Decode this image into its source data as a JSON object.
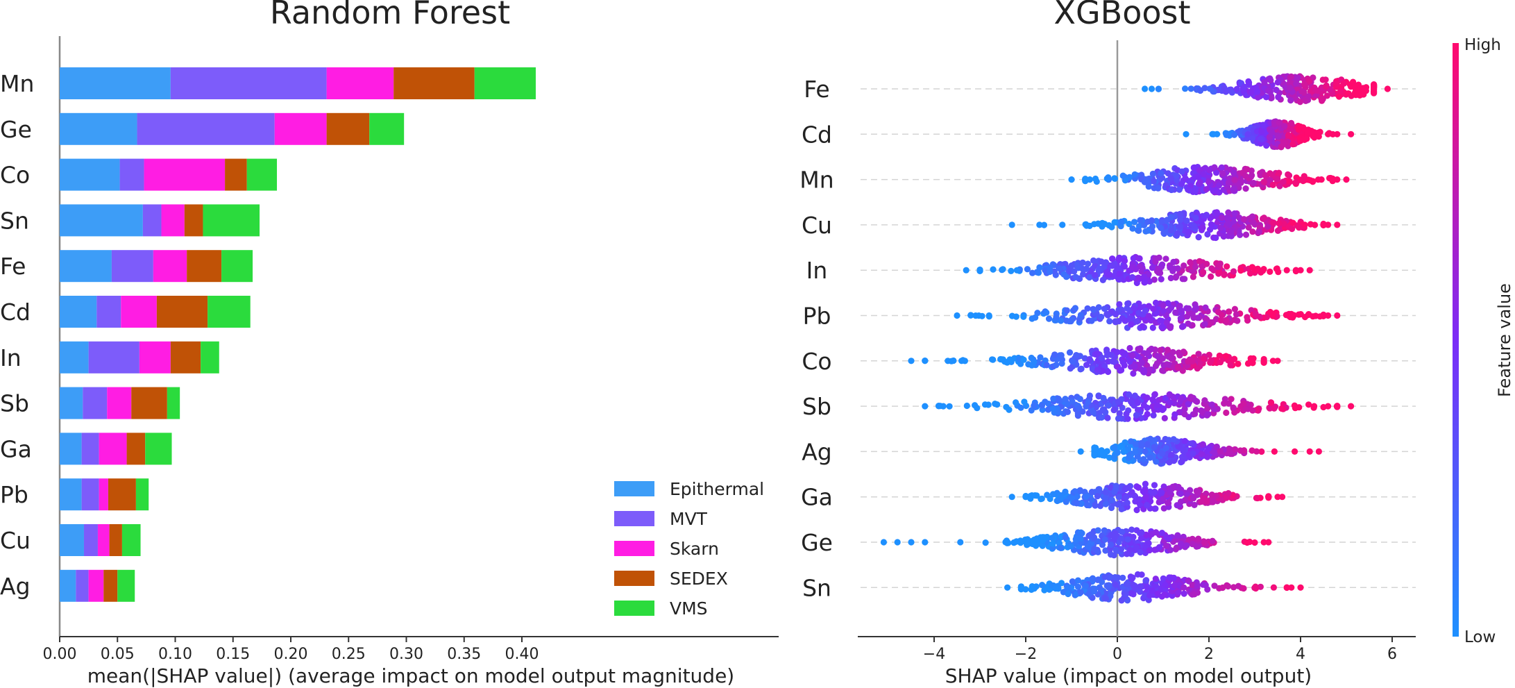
{
  "chart_data": [
    {
      "type": "bar",
      "stacked": true,
      "orientation": "horizontal",
      "title": "Random Forest",
      "xlabel": "mean(|SHAP value|) (average impact on model output magnitude)",
      "ylabel": "",
      "xlim": [
        0,
        0.43
      ],
      "xticks": [
        "0.00",
        "0.05",
        "0.10",
        "0.15",
        "0.20",
        "0.25",
        "0.30",
        "0.35",
        "0.40"
      ],
      "categories": [
        "Mn",
        "Ge",
        "Co",
        "Sn",
        "Fe",
        "Cd",
        "In",
        "Sb",
        "Ga",
        "Pb",
        "Cu",
        "Ag"
      ],
      "legend_position": "lower-right",
      "series": [
        {
          "name": "Epithermal",
          "color": "#3d9df7",
          "values": [
            0.096,
            0.067,
            0.052,
            0.072,
            0.045,
            0.032,
            0.025,
            0.02,
            0.019,
            0.019,
            0.021,
            0.014
          ]
        },
        {
          "name": "MVT",
          "color": "#7d5cfa",
          "values": [
            0.135,
            0.119,
            0.021,
            0.016,
            0.036,
            0.021,
            0.044,
            0.021,
            0.015,
            0.015,
            0.012,
            0.011
          ]
        },
        {
          "name": "Skarn",
          "color": "#ff1de3",
          "values": [
            0.058,
            0.045,
            0.07,
            0.02,
            0.029,
            0.031,
            0.027,
            0.021,
            0.024,
            0.008,
            0.01,
            0.013
          ]
        },
        {
          "name": "SEDEX",
          "color": "#c05206",
          "values": [
            0.07,
            0.037,
            0.019,
            0.016,
            0.03,
            0.044,
            0.026,
            0.031,
            0.016,
            0.024,
            0.011,
            0.012
          ]
        },
        {
          "name": "VMS",
          "color": "#2bdb3d",
          "values": [
            0.053,
            0.03,
            0.026,
            0.049,
            0.027,
            0.037,
            0.016,
            0.011,
            0.023,
            0.011,
            0.016,
            0.015
          ]
        }
      ]
    },
    {
      "type": "scatter",
      "subtype": "beeswarm",
      "title": "XGBoost",
      "xlabel": "SHAP value (impact on model output)",
      "ylabel": "",
      "xlim": [
        -5.6,
        6.5
      ],
      "xticks": [
        "−4",
        "−2",
        "0",
        "2",
        "4",
        "6"
      ],
      "features": [
        {
          "name": "Fe",
          "min": 0.6,
          "max": 5.9,
          "center": 4.0,
          "spread": 1.1,
          "low": 0.9,
          "high": 5.0,
          "outliers": [
            0.6,
            0.75,
            5.9
          ]
        },
        {
          "name": "Cd",
          "min": 1.5,
          "max": 5.1,
          "center": 3.5,
          "spread": 0.5,
          "low": 2.3,
          "high": 4.0,
          "outliers": [
            1.5,
            2.1,
            4.6,
            4.8,
            5.1
          ]
        },
        {
          "name": "Mn",
          "min": -1.0,
          "max": 5.0,
          "center": 2.0,
          "spread": 1.3,
          "low": -0.3,
          "high": 4.0,
          "outliers": [
            -1.0,
            -0.6,
            4.8,
            5.0
          ]
        },
        {
          "name": "Cu",
          "min": -2.3,
          "max": 4.8,
          "center": 2.0,
          "spread": 1.2,
          "low": 0.0,
          "high": 4.0,
          "outliers": [
            -2.3,
            -1.7,
            -1.2,
            4.6,
            4.8
          ]
        },
        {
          "name": "In",
          "min": -3.3,
          "max": 4.2,
          "center": 0.5,
          "spread": 1.5,
          "low": -2.4,
          "high": 3.0,
          "outliers": [
            -3.3,
            -3.0,
            3.7,
            4.0,
            4.2
          ]
        },
        {
          "name": "Pb",
          "min": -3.5,
          "max": 4.8,
          "center": 0.8,
          "spread": 1.6,
          "low": -2.0,
          "high": 3.5,
          "outliers": [
            -3.5,
            -2.8,
            4.6,
            4.8
          ]
        },
        {
          "name": "Co",
          "min": -4.5,
          "max": 3.5,
          "center": 0.3,
          "spread": 1.5,
          "low": -2.3,
          "high": 2.5,
          "outliers": [
            -4.5,
            -3.7,
            -3.4,
            3.4,
            3.5
          ]
        },
        {
          "name": "Sb",
          "min": -4.2,
          "max": 5.1,
          "center": 0.5,
          "spread": 1.8,
          "low": -2.3,
          "high": 4.0,
          "outliers": [
            -4.2,
            -3.8,
            4.6,
            5.1
          ]
        },
        {
          "name": "Ag",
          "min": -0.8,
          "max": 4.4,
          "center": 0.9,
          "spread": 0.9,
          "low": 0.0,
          "high": 3.5,
          "outliers": [
            -0.8,
            4.2,
            4.4
          ]
        },
        {
          "name": "Ga",
          "min": -2.3,
          "max": 3.6,
          "center": 0.5,
          "spread": 1.2,
          "low": -1.5,
          "high": 3.0,
          "outliers": [
            -2.3,
            -2.0,
            3.5,
            3.6
          ]
        },
        {
          "name": "Ge",
          "min": -5.1,
          "max": 3.3,
          "center": 0.0,
          "spread": 1.2,
          "low": -1.5,
          "high": 3.0,
          "outliers": [
            -5.1,
            -4.8,
            -4.5,
            -4.2,
            3.2,
            3.3
          ]
        },
        {
          "name": "Sn",
          "min": -2.4,
          "max": 4.0,
          "center": 0.3,
          "spread": 1.2,
          "low": -1.5,
          "high": 3.5,
          "outliers": [
            -2.4,
            3.8,
            4.0
          ]
        }
      ],
      "colorbar": {
        "label": "Feature value",
        "high_label": "High",
        "low_label": "Low",
        "low_color": "#1e90ff",
        "mid_color": "#7b2cf7",
        "high_color": "#ff0a6e"
      }
    }
  ]
}
